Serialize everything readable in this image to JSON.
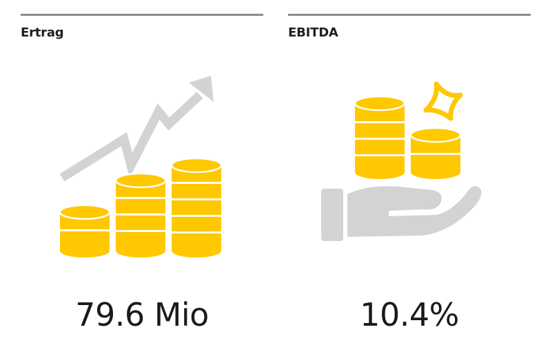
{
  "cards": [
    {
      "label": "Ertrag",
      "value": "79.6 Mio",
      "illustration": "coins-growth-icon"
    },
    {
      "label": "EBITDA",
      "value": "10.4%",
      "illustration": "hand-coins-sparkle-icon"
    }
  ],
  "colors": {
    "coin": "#ffc800",
    "coin_stripe": "#ffffff",
    "grey_graphic": "#d3d3d3",
    "rule": "#8c8c8c",
    "text": "#1a1a1a"
  }
}
